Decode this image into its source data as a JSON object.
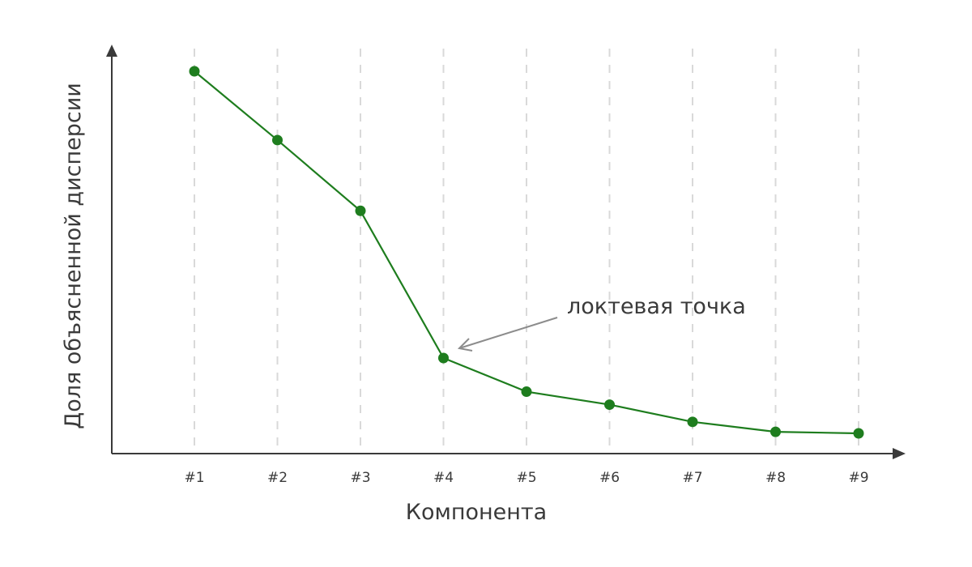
{
  "chart_data": {
    "type": "line",
    "categories": [
      "#1",
      "#2",
      "#3",
      "#4",
      "#5",
      "#6",
      "#7",
      "#8",
      "#9"
    ],
    "series": [
      {
        "values": [
          1.0,
          0.82,
          0.635,
          0.25,
          0.162,
          0.128,
          0.083,
          0.057,
          0.053
        ]
      }
    ],
    "xlabel": "Компонента",
    "ylabel": "Доля объясненной дисперсии",
    "ylim": [
      0,
      1.0
    ],
    "grid": "vertical dashed",
    "annotation": {
      "text": "локтевая точка",
      "target_category": "#4"
    },
    "colors": {
      "series": "#1e7d1e",
      "axis": "#3a3a3a",
      "grid": "#d9d9d9",
      "annotation_arrow": "#8c8c8c"
    }
  }
}
